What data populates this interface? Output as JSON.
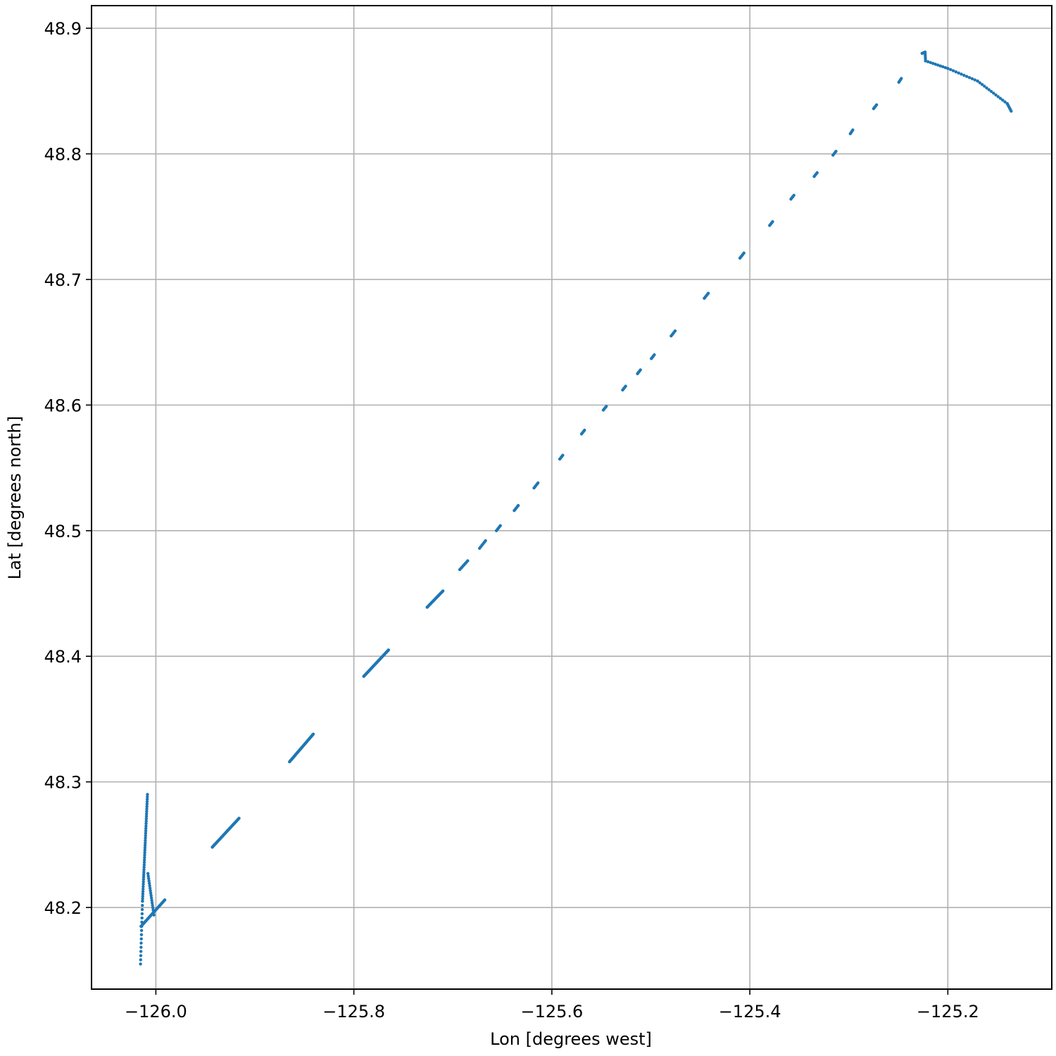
{
  "chart_data": {
    "type": "scatter",
    "title": "",
    "xlabel": "Lon [degrees west]",
    "ylabel": "Lat [degrees north]",
    "xlim": [
      -126.065,
      -125.095
    ],
    "ylim": [
      48.135,
      48.918
    ],
    "xticks": [
      -126.0,
      -125.8,
      -125.6,
      -125.4,
      -125.2
    ],
    "xtick_labels": [
      "−126.0",
      "−125.8",
      "−125.6",
      "−125.4",
      "−125.2"
    ],
    "yticks": [
      48.2,
      48.3,
      48.4,
      48.5,
      48.6,
      48.7,
      48.8,
      48.9
    ],
    "ytick_labels": [
      "48.2",
      "48.3",
      "48.4",
      "48.5",
      "48.6",
      "48.7",
      "48.8",
      "48.9"
    ],
    "grid": true,
    "marker_color": "#1f77b4",
    "series": [
      {
        "segments": [
          {
            "from": [
              -126.0155,
              48.155
            ],
            "to": [
              -126.0135,
              48.205
            ],
            "n": 16
          },
          {
            "from": [
              -126.0135,
              48.205
            ],
            "to": [
              -126.0085,
              48.29
            ],
            "n": 45
          },
          {
            "from": [
              -126.015,
              48.185
            ],
            "to": [
              -125.991,
              48.206
            ],
            "n": 30
          },
          {
            "from": [
              -126.008,
              48.227
            ],
            "to": [
              -126.002,
              48.194
            ],
            "n": 18
          },
          {
            "from": [
              -125.943,
              48.248
            ],
            "to": [
              -125.916,
              48.271
            ],
            "n": 40
          },
          {
            "from": [
              -125.865,
              48.316
            ],
            "to": [
              -125.841,
              48.338
            ],
            "n": 40
          },
          {
            "from": [
              -125.79,
              48.384
            ],
            "to": [
              -125.765,
              48.405
            ],
            "n": 40
          },
          {
            "from": [
              -125.726,
              48.439
            ],
            "to": [
              -125.71,
              48.452
            ],
            "n": 22
          },
          {
            "from": [
              -125.693,
              48.469
            ],
            "to": [
              -125.685,
              48.476
            ],
            "n": 8
          },
          {
            "from": [
              -125.673,
              48.486
            ],
            "to": [
              -125.667,
              48.492
            ],
            "n": 6
          },
          {
            "from": [
              -125.656,
              48.5
            ],
            "to": [
              -125.652,
              48.504
            ],
            "n": 5
          },
          {
            "from": [
              -125.638,
              48.516
            ],
            "to": [
              -125.634,
              48.52
            ],
            "n": 5
          },
          {
            "from": [
              -125.618,
              48.534
            ],
            "to": [
              -125.614,
              48.538
            ],
            "n": 5
          },
          {
            "from": [
              -125.592,
              48.557
            ],
            "to": [
              -125.589,
              48.56
            ],
            "n": 4
          },
          {
            "from": [
              -125.57,
              48.577
            ],
            "to": [
              -125.567,
              48.58
            ],
            "n": 4
          },
          {
            "from": [
              -125.548,
              48.596
            ],
            "to": [
              -125.545,
              48.599
            ],
            "n": 4
          },
          {
            "from": [
              -125.5285,
              48.612
            ],
            "to": [
              -125.5255,
              48.615
            ],
            "n": 4
          },
          {
            "from": [
              -125.5135,
              48.625
            ],
            "to": [
              -125.5105,
              48.628
            ],
            "n": 4
          },
          {
            "from": [
              -125.4995,
              48.637
            ],
            "to": [
              -125.4965,
              48.64
            ],
            "n": 4
          },
          {
            "from": [
              -125.4795,
              48.655
            ],
            "to": [
              -125.4755,
              48.659
            ],
            "n": 5
          },
          {
            "from": [
              -125.446,
              48.685
            ],
            "to": [
              -125.442,
              48.689
            ],
            "n": 5
          },
          {
            "from": [
              -125.41,
              48.717
            ],
            "to": [
              -125.406,
              48.721
            ],
            "n": 5
          },
          {
            "from": [
              -125.38,
              48.743
            ],
            "to": [
              -125.377,
              48.746
            ],
            "n": 4
          },
          {
            "from": [
              -125.3585,
              48.764
            ],
            "to": [
              -125.3555,
              48.767
            ],
            "n": 4
          },
          {
            "from": [
              -125.335,
              48.782
            ],
            "to": [
              -125.332,
              48.785
            ],
            "n": 4
          },
          {
            "from": [
              -125.316,
              48.799
            ],
            "to": [
              -125.313,
              48.802
            ],
            "n": 4
          },
          {
            "from": [
              -125.2985,
              48.816
            ],
            "to": [
              -125.296,
              48.819
            ],
            "n": 4
          },
          {
            "from": [
              -125.275,
              48.836
            ],
            "to": [
              -125.272,
              48.839
            ],
            "n": 4
          },
          {
            "from": [
              -125.2495,
              48.857
            ],
            "to": [
              -125.247,
              48.86
            ],
            "n": 4
          },
          {
            "from": [
              -125.226,
              48.88
            ],
            "to": [
              -125.223,
              48.881
            ],
            "n": 4
          },
          {
            "from": [
              -125.223,
              48.881
            ],
            "to": [
              -125.2225,
              48.874
            ],
            "n": 6
          },
          {
            "from": [
              -125.2225,
              48.874
            ],
            "to": [
              -125.2,
              48.868
            ],
            "n": 10
          },
          {
            "from": [
              -125.2,
              48.868
            ],
            "to": [
              -125.17,
              48.858
            ],
            "n": 12
          },
          {
            "from": [
              -125.17,
              48.858
            ],
            "to": [
              -125.14,
              48.84
            ],
            "n": 14
          },
          {
            "from": [
              -125.14,
              48.84
            ],
            "to": [
              -125.136,
              48.834
            ],
            "n": 6
          }
        ]
      }
    ]
  }
}
